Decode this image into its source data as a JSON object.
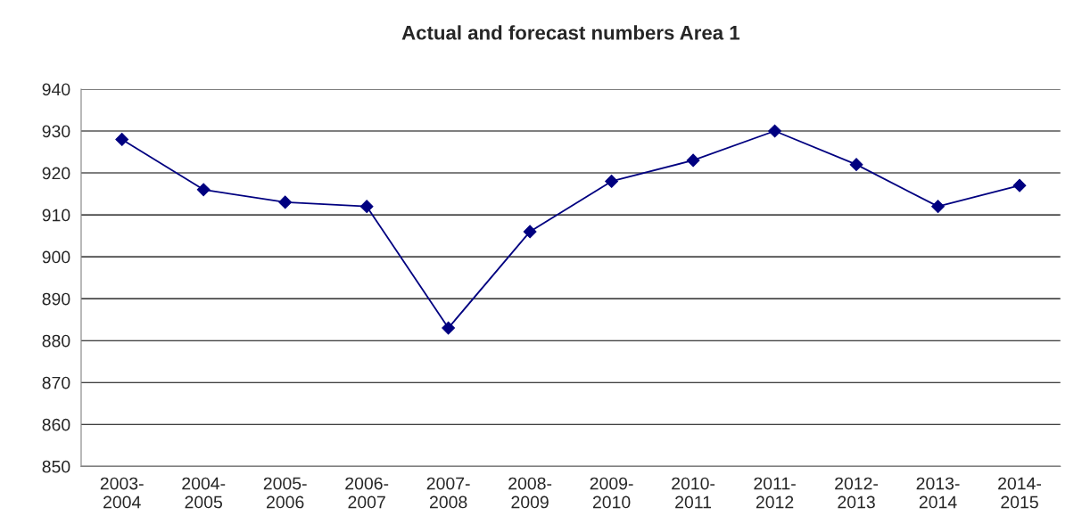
{
  "chart_data": {
    "type": "line",
    "title": "Actual and forecast numbers Area 1",
    "categories": [
      "2003-\n2004",
      "2004-\n2005",
      "2005-\n2006",
      "2006-\n2007",
      "2007-\n2008",
      "2008-\n2009",
      "2009-\n2010",
      "2010-\n2011",
      "2011-\n2012",
      "2012-\n2013",
      "2013-\n2014",
      "2014-\n2015"
    ],
    "series": [
      {
        "color": "#000080",
        "values": [
          928,
          916,
          913,
          912,
          883,
          906,
          918,
          923,
          930,
          922,
          912,
          917
        ]
      }
    ],
    "ylim": [
      850,
      940
    ],
    "yticks": [
      850,
      860,
      870,
      880,
      890,
      900,
      910,
      920,
      930,
      940
    ],
    "grid": "y",
    "marker": "diamond",
    "line_style": "solid"
  }
}
